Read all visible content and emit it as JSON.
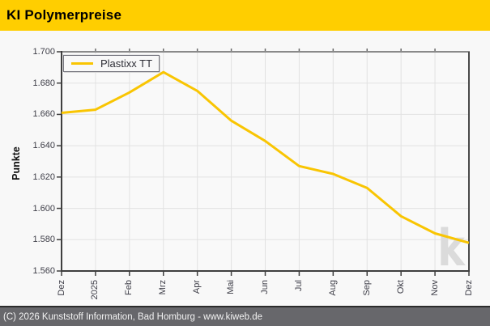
{
  "header": {
    "title": "KI Polymerpreise"
  },
  "chart": {
    "y_axis_title": "Punkte",
    "series_name": "Plastixx TT",
    "watermark": "k"
  },
  "colors": {
    "header_background": "#FFCE00",
    "series_line": "#F9C502",
    "footer_background": "#67676B",
    "footer_border": "#2B2B2B",
    "watermark": "#DBDBDB",
    "grid": "#E2E2E2",
    "axis_dark": "#3F3F3F",
    "axis_top": "#8A8A8A",
    "axis_right": "#4A4A4A",
    "tick_label": "#3D3D47"
  },
  "chart_data": {
    "type": "line",
    "title": "KI Polymerpreise",
    "xlabel": "",
    "ylabel": "Punkte",
    "categories": [
      "Dez",
      "2025",
      "Feb",
      "Mrz",
      "Apr",
      "Mai",
      "Jun",
      "Jul",
      "Aug",
      "Sep",
      "Okt",
      "Nov",
      "Dez"
    ],
    "series": [
      {
        "name": "Plastixx TT",
        "values": [
          1661,
          1663,
          1674,
          1687,
          1675,
          1656,
          1643,
          1627,
          1622,
          1613,
          1595,
          1584,
          1578
        ]
      }
    ],
    "ylim": [
      1560,
      1700
    ],
    "y_tick_step": 20,
    "y_tick_labels": [
      "1.700",
      "1.680",
      "1.660",
      "1.640",
      "1.620",
      "1.600",
      "1.580",
      "1.560"
    ],
    "grid": true,
    "legend_position": "top-left"
  },
  "footer": {
    "copyright": "(C) 2026 Kunststoff Information, Bad Homburg - www.kiweb.de"
  }
}
